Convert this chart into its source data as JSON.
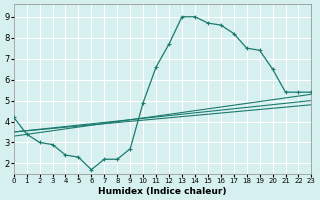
{
  "background_color": "#d6efef",
  "grid_color": "#ffffff",
  "line_color": "#1a7a6e",
  "xlabel": "Humidex (Indice chaleur)",
  "xlim": [
    0,
    23
  ],
  "ylim": [
    1.5,
    9.6
  ],
  "yticks": [
    2,
    3,
    4,
    5,
    6,
    7,
    8,
    9
  ],
  "xticks": [
    0,
    1,
    2,
    3,
    4,
    5,
    6,
    7,
    8,
    9,
    10,
    11,
    12,
    13,
    14,
    15,
    16,
    17,
    18,
    19,
    20,
    21,
    22,
    23
  ],
  "series1": {
    "x": [
      0,
      1,
      2,
      3,
      4,
      5,
      6,
      7,
      8,
      9,
      10,
      11,
      12,
      13,
      14,
      15,
      16,
      17,
      18,
      19,
      20,
      21,
      22,
      23
    ],
    "y": [
      4.2,
      3.4,
      3.0,
      2.9,
      2.4,
      2.3,
      1.7,
      2.2,
      2.2,
      2.7,
      4.9,
      6.6,
      7.7,
      9.0,
      9.0,
      8.7,
      8.6,
      8.2,
      7.5,
      7.4,
      6.5,
      5.4,
      5.4,
      5.4
    ]
  },
  "series2_line": {
    "x": [
      0,
      23
    ],
    "y": [
      3.5,
      5.0
    ]
  },
  "series3_line": {
    "x": [
      0,
      23
    ],
    "y": [
      3.5,
      4.8
    ]
  },
  "series4_line": {
    "x": [
      0,
      23
    ],
    "y": [
      3.3,
      5.3
    ]
  }
}
